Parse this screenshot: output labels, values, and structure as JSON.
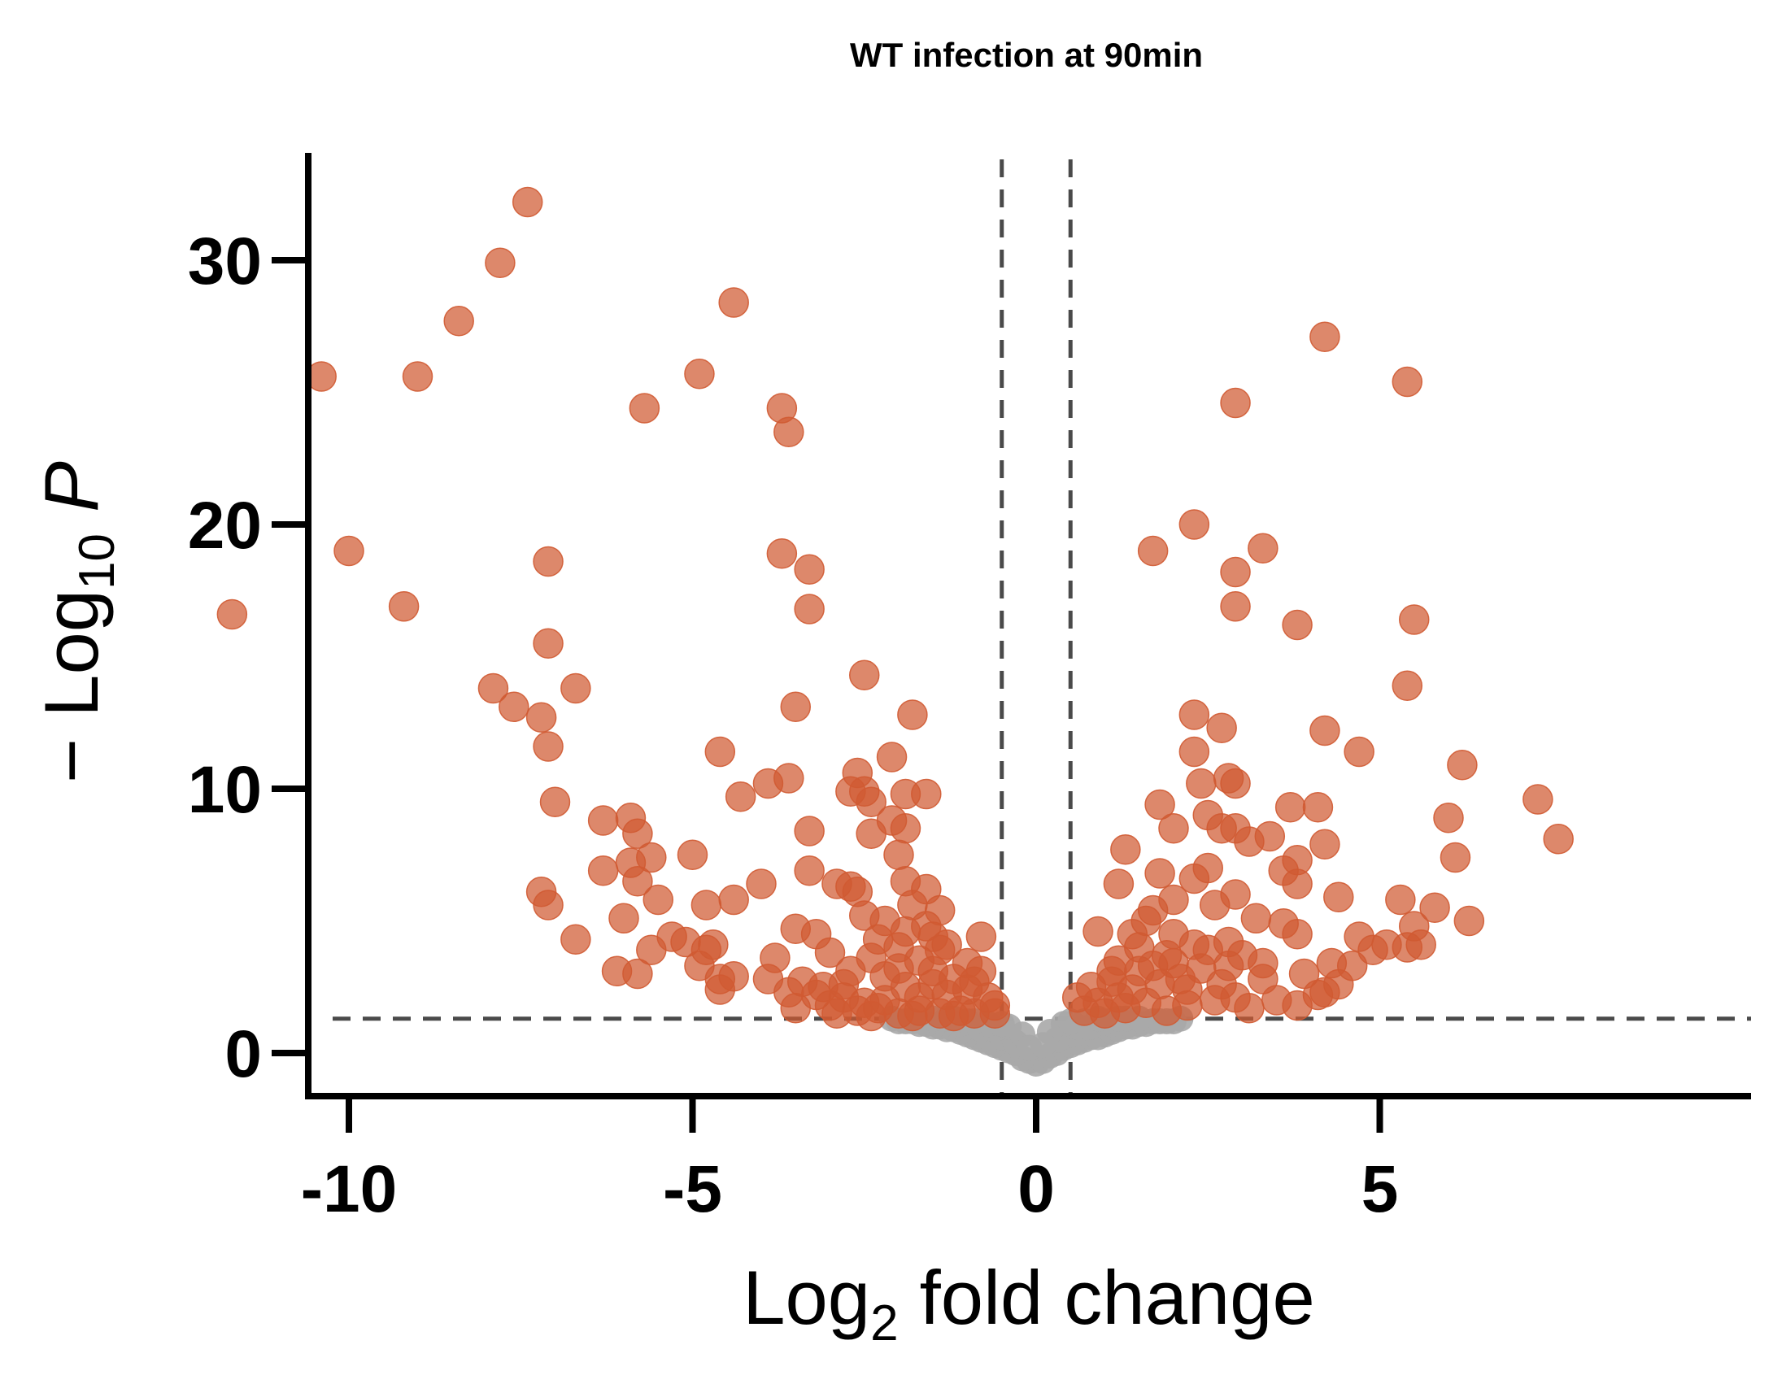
{
  "chart_data": {
    "type": "scatter",
    "title": "WT infection at 90min",
    "xlabel": {
      "prefix": "Log",
      "sub": "2",
      "suffix": " fold change"
    },
    "ylabel": {
      "prefix": "− Log",
      "sub": "10",
      "suffix": " P"
    },
    "xlim": [
      -12.4,
      8.7
    ],
    "ylim": [
      -1.5,
      34.5
    ],
    "xticks": [
      -10,
      -5,
      0,
      5
    ],
    "xtick_labels": [
      "-10",
      "-5",
      "0",
      "5"
    ],
    "yticks": [
      0,
      10,
      20,
      30
    ],
    "ytick_labels": [
      "0",
      "10",
      "20",
      "30"
    ],
    "grid": false,
    "legend": "none",
    "thresholds": {
      "fold_change": [
        -0.5,
        0.5
      ],
      "neg_log10_p": 1.3
    },
    "colors": {
      "significant": "#d05a32",
      "not_significant": "#a8a8a8",
      "axis": "#000000",
      "threshold_line": "#4a4a4a"
    },
    "series": [
      {
        "color": "#d05a32",
        "points": [
          [
            -7.4,
            32.2
          ],
          [
            -7.8,
            29.9
          ],
          [
            -4.4,
            28.4
          ],
          [
            -8.4,
            27.7
          ],
          [
            -10.4,
            25.6
          ],
          [
            -9.0,
            25.6
          ],
          [
            -4.9,
            25.7
          ],
          [
            -5.7,
            24.4
          ],
          [
            -3.7,
            24.4
          ],
          [
            -3.6,
            23.5
          ],
          [
            -10.0,
            19.0
          ],
          [
            -7.1,
            18.6
          ],
          [
            -3.7,
            18.9
          ],
          [
            -3.3,
            18.3
          ],
          [
            -11.7,
            16.6
          ],
          [
            -9.2,
            16.9
          ],
          [
            -3.3,
            16.8
          ],
          [
            -7.1,
            15.5
          ],
          [
            -7.9,
            13.8
          ],
          [
            -6.7,
            13.8
          ],
          [
            -7.6,
            13.1
          ],
          [
            -7.2,
            12.7
          ],
          [
            -3.5,
            13.1
          ],
          [
            -2.5,
            14.3
          ],
          [
            -1.8,
            12.8
          ],
          [
            -7.1,
            11.6
          ],
          [
            -4.6,
            11.4
          ],
          [
            -2.1,
            11.2
          ],
          [
            -2.6,
            10.6
          ],
          [
            -3.9,
            10.2
          ],
          [
            -3.6,
            10.4
          ],
          [
            -7.0,
            9.5
          ],
          [
            -4.3,
            9.7
          ],
          [
            -2.7,
            9.9
          ],
          [
            -2.5,
            9.9
          ],
          [
            -1.9,
            9.8
          ],
          [
            -1.6,
            9.8
          ],
          [
            -2.4,
            9.5
          ],
          [
            -6.3,
            8.8
          ],
          [
            -5.9,
            8.9
          ],
          [
            -5.8,
            8.3
          ],
          [
            -3.3,
            8.4
          ],
          [
            -2.4,
            8.3
          ],
          [
            -2.1,
            8.8
          ],
          [
            -1.9,
            8.5
          ],
          [
            -5.0,
            7.5
          ],
          [
            -5.9,
            7.2
          ],
          [
            -5.6,
            7.4
          ],
          [
            -2.0,
            7.5
          ],
          [
            -6.3,
            6.9
          ],
          [
            -3.3,
            6.9
          ],
          [
            -5.8,
            6.5
          ],
          [
            -7.2,
            6.1
          ],
          [
            -4.0,
            6.4
          ],
          [
            -2.9,
            6.4
          ],
          [
            -2.7,
            6.3
          ],
          [
            -7.1,
            5.6
          ],
          [
            -5.5,
            5.8
          ],
          [
            -4.8,
            5.6
          ],
          [
            -4.4,
            5.8
          ],
          [
            -2.6,
            6.1
          ],
          [
            -1.9,
            6.5
          ],
          [
            -1.6,
            6.2
          ],
          [
            -6.0,
            5.1
          ],
          [
            -3.5,
            4.7
          ],
          [
            -2.5,
            5.2
          ],
          [
            -6.7,
            4.3
          ],
          [
            -5.3,
            4.4
          ],
          [
            -5.1,
            4.2
          ],
          [
            -4.7,
            4.1
          ],
          [
            -3.2,
            4.5
          ],
          [
            -0.8,
            4.4
          ],
          [
            -5.6,
            3.9
          ],
          [
            -4.8,
            3.9
          ],
          [
            -3.8,
            3.6
          ],
          [
            -3.0,
            3.8
          ],
          [
            -2.0,
            4.0
          ],
          [
            -1.4,
            3.9
          ],
          [
            -6.1,
            3.1
          ],
          [
            -5.8,
            3.0
          ],
          [
            -4.9,
            3.3
          ],
          [
            -4.6,
            2.8
          ],
          [
            -4.4,
            2.9
          ],
          [
            -3.9,
            2.8
          ],
          [
            -3.4,
            2.7
          ],
          [
            -2.7,
            3.1
          ],
          [
            -2.2,
            2.9
          ],
          [
            -1.9,
            2.5
          ],
          [
            -1.5,
            3.1
          ],
          [
            -1.2,
            2.8
          ],
          [
            -0.9,
            2.7
          ],
          [
            -4.6,
            2.4
          ],
          [
            -3.6,
            2.3
          ],
          [
            -3.2,
            2.2
          ],
          [
            -2.8,
            2.1
          ],
          [
            -2.5,
            1.9
          ],
          [
            -2.2,
            2.0
          ],
          [
            -1.7,
            2.1
          ],
          [
            -1.3,
            2.2
          ],
          [
            -1.0,
            2.4
          ],
          [
            -0.7,
            2.1
          ],
          [
            -0.6,
            1.8
          ],
          [
            -3.5,
            1.7
          ],
          [
            -3.0,
            1.8
          ],
          [
            -2.6,
            1.6
          ],
          [
            -2.3,
            1.7
          ],
          [
            -2.0,
            1.5
          ],
          [
            -1.7,
            1.6
          ],
          [
            -1.4,
            1.5
          ],
          [
            -1.1,
            1.6
          ],
          [
            -0.9,
            1.5
          ],
          [
            -0.6,
            1.5
          ],
          [
            -2.9,
            1.5
          ],
          [
            -2.4,
            1.4
          ],
          [
            -1.8,
            1.4
          ],
          [
            -1.2,
            1.4
          ],
          [
            -1.6,
            4.8
          ],
          [
            -1.4,
            5.4
          ],
          [
            -2.2,
            5.0
          ],
          [
            -1.8,
            5.6
          ],
          [
            -2.3,
            4.3
          ],
          [
            -1.7,
            3.5
          ],
          [
            -2.4,
            3.6
          ],
          [
            -2.0,
            3.2
          ],
          [
            -1.3,
            4.1
          ],
          [
            -1.0,
            3.4
          ],
          [
            -2.8,
            2.6
          ],
          [
            -3.1,
            2.5
          ],
          [
            -1.5,
            2.6
          ],
          [
            -0.8,
            3.1
          ],
          [
            -1.9,
            4.6
          ],
          [
            -1.5,
            4.4
          ],
          [
            4.2,
            27.1
          ],
          [
            5.4,
            25.4
          ],
          [
            2.9,
            24.6
          ],
          [
            2.3,
            20.0
          ],
          [
            3.3,
            19.1
          ],
          [
            1.7,
            19.0
          ],
          [
            2.9,
            18.2
          ],
          [
            3.8,
            16.2
          ],
          [
            5.5,
            16.4
          ],
          [
            2.9,
            16.9
          ],
          [
            5.4,
            13.9
          ],
          [
            2.3,
            12.8
          ],
          [
            2.7,
            12.3
          ],
          [
            4.2,
            12.2
          ],
          [
            2.3,
            11.4
          ],
          [
            4.7,
            11.4
          ],
          [
            6.2,
            10.9
          ],
          [
            2.8,
            10.4
          ],
          [
            2.4,
            10.2
          ],
          [
            2.9,
            10.2
          ],
          [
            7.3,
            9.6
          ],
          [
            1.8,
            9.4
          ],
          [
            3.7,
            9.3
          ],
          [
            4.1,
            9.3
          ],
          [
            2.5,
            9.0
          ],
          [
            6.0,
            8.9
          ],
          [
            2.0,
            8.5
          ],
          [
            2.7,
            8.5
          ],
          [
            2.9,
            8.5
          ],
          [
            3.4,
            8.2
          ],
          [
            3.1,
            8.0
          ],
          [
            1.3,
            7.7
          ],
          [
            7.6,
            8.1
          ],
          [
            4.2,
            7.9
          ],
          [
            3.8,
            7.3
          ],
          [
            6.1,
            7.4
          ],
          [
            2.5,
            7.0
          ],
          [
            3.6,
            6.9
          ],
          [
            1.8,
            6.8
          ],
          [
            2.3,
            6.6
          ],
          [
            1.2,
            6.4
          ],
          [
            3.8,
            6.4
          ],
          [
            2.9,
            6.0
          ],
          [
            4.4,
            5.9
          ],
          [
            5.3,
            5.8
          ],
          [
            5.8,
            5.5
          ],
          [
            1.7,
            5.4
          ],
          [
            2.6,
            5.6
          ],
          [
            6.3,
            5.0
          ],
          [
            3.2,
            5.1
          ],
          [
            3.6,
            4.9
          ],
          [
            5.5,
            4.8
          ],
          [
            0.9,
            4.6
          ],
          [
            2.0,
            4.5
          ],
          [
            3.8,
            4.5
          ],
          [
            4.7,
            4.4
          ],
          [
            5.1,
            4.1
          ],
          [
            5.4,
            4.0
          ],
          [
            5.6,
            4.1
          ],
          [
            4.9,
            3.9
          ],
          [
            4.6,
            3.3
          ],
          [
            4.3,
            3.4
          ],
          [
            3.3,
            3.4
          ],
          [
            2.8,
            3.3
          ],
          [
            2.4,
            3.2
          ],
          [
            1.5,
            3.1
          ],
          [
            1.1,
            2.7
          ],
          [
            0.8,
            2.5
          ],
          [
            3.9,
            3.0
          ],
          [
            4.4,
            2.6
          ],
          [
            4.1,
            2.2
          ],
          [
            3.8,
            1.8
          ],
          [
            3.5,
            2.0
          ],
          [
            3.1,
            1.7
          ],
          [
            2.6,
            2.0
          ],
          [
            2.2,
            1.8
          ],
          [
            1.9,
            1.6
          ],
          [
            1.6,
            1.9
          ],
          [
            1.3,
            1.7
          ],
          [
            1.0,
            1.5
          ],
          [
            0.7,
            1.6
          ],
          [
            0.6,
            2.1
          ],
          [
            1.4,
            2.4
          ],
          [
            1.8,
            2.6
          ],
          [
            2.1,
            2.8
          ],
          [
            2.7,
            2.6
          ],
          [
            3.3,
            2.8
          ],
          [
            4.2,
            2.3
          ],
          [
            1.5,
            4.0
          ],
          [
            1.9,
            3.7
          ],
          [
            2.3,
            4.1
          ],
          [
            1.2,
            3.5
          ],
          [
            1.6,
            5.0
          ],
          [
            2.0,
            5.8
          ],
          [
            1.4,
            4.5
          ],
          [
            2.8,
            4.2
          ],
          [
            3.0,
            3.7
          ],
          [
            1.7,
            3.3
          ],
          [
            2.5,
            3.9
          ],
          [
            2.0,
            3.4
          ],
          [
            1.1,
            3.1
          ],
          [
            2.2,
            2.4
          ],
          [
            2.9,
            2.1
          ],
          [
            1.2,
            2.1
          ],
          [
            0.9,
            1.9
          ]
        ]
      },
      {
        "color": "#a8a8a8",
        "points": [
          [
            0.0,
            -0.4
          ],
          [
            -0.1,
            -0.3
          ],
          [
            0.1,
            -0.3
          ],
          [
            -0.2,
            -0.2
          ],
          [
            0.2,
            -0.1
          ],
          [
            -0.3,
            0.0
          ],
          [
            0.3,
            0.0
          ],
          [
            -0.4,
            0.1
          ],
          [
            0.4,
            0.2
          ],
          [
            -0.5,
            0.2
          ],
          [
            0.5,
            0.3
          ],
          [
            -0.6,
            0.3
          ],
          [
            0.6,
            0.4
          ],
          [
            -0.7,
            0.4
          ],
          [
            0.7,
            0.5
          ],
          [
            -0.8,
            0.5
          ],
          [
            0.8,
            0.6
          ],
          [
            -0.9,
            0.6
          ],
          [
            0.9,
            0.6
          ],
          [
            -1.0,
            0.7
          ],
          [
            1.0,
            0.7
          ],
          [
            -1.1,
            0.8
          ],
          [
            1.1,
            0.8
          ],
          [
            -1.2,
            0.9
          ],
          [
            1.2,
            0.9
          ],
          [
            -1.3,
            0.9
          ],
          [
            1.3,
            1.0
          ],
          [
            -1.4,
            1.0
          ],
          [
            1.4,
            1.0
          ],
          [
            -1.5,
            1.0
          ],
          [
            1.5,
            1.1
          ],
          [
            -1.6,
            1.1
          ],
          [
            1.6,
            1.1
          ],
          [
            -1.7,
            1.1
          ],
          [
            1.7,
            1.2
          ],
          [
            -1.8,
            1.2
          ],
          [
            1.8,
            1.2
          ],
          [
            -1.9,
            1.2
          ],
          [
            1.9,
            1.2
          ],
          [
            -2.0,
            1.2
          ],
          [
            -0.5,
            0.6
          ],
          [
            0.5,
            0.7
          ],
          [
            -0.8,
            0.9
          ],
          [
            0.8,
            1.0
          ],
          [
            -1.1,
            1.1
          ],
          [
            1.1,
            1.1
          ],
          [
            -0.3,
            0.4
          ],
          [
            0.3,
            0.5
          ],
          [
            -0.6,
            0.9
          ],
          [
            0.6,
            1.0
          ],
          [
            -1.0,
            1.2
          ],
          [
            1.0,
            1.2
          ],
          [
            -0.4,
            1.0
          ],
          [
            0.4,
            1.1
          ],
          [
            -0.7,
            1.1
          ],
          [
            0.7,
            1.2
          ],
          [
            -0.2,
            0.7
          ],
          [
            0.2,
            0.8
          ],
          [
            -0.9,
            1.2
          ],
          [
            0.9,
            1.3
          ],
          [
            -1.3,
            1.3
          ],
          [
            1.3,
            1.3
          ],
          [
            -1.5,
            1.3
          ],
          [
            1.5,
            1.3
          ],
          [
            -0.1,
            0.2
          ],
          [
            0.1,
            0.3
          ],
          [
            -0.5,
            1.1
          ],
          [
            0.5,
            1.2
          ],
          [
            -1.2,
            1.3
          ],
          [
            1.2,
            1.3
          ],
          [
            2.0,
            1.2
          ],
          [
            2.1,
            1.3
          ],
          [
            -2.1,
            1.3
          ]
        ]
      }
    ]
  }
}
